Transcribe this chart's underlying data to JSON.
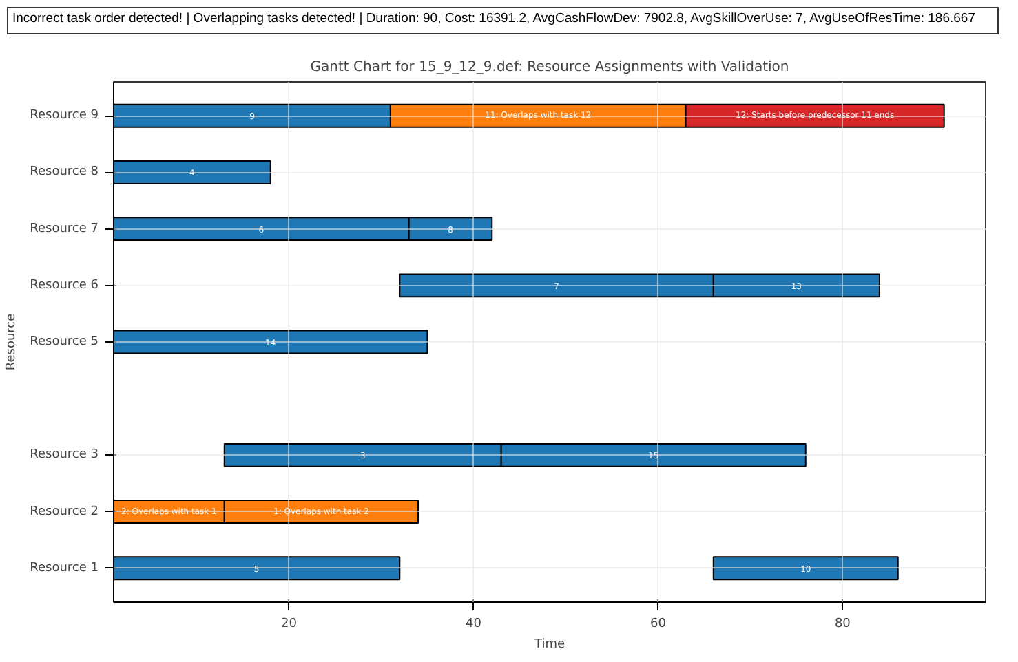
{
  "chart_data": {
    "type": "bar",
    "orientation": "horizontal",
    "title": "Gantt Chart for 15_9_12_9.def: Resource Assignments with Validation",
    "xlabel": "Time",
    "ylabel": "Resource",
    "annotations": [
      "Incorrect task order detected! | Overlapping tasks detected! | Duration: 90, Cost: 16391.2, AvgCashFlowDev: 7902.8, AvgSkillOverUse: 7, AvgUseOfResTime: 186.667",
      "9",
      "4",
      "6",
      "7",
      "14",
      "3",
      "2: Overlaps with task 1",
      "5",
      "11: Overlaps with task 12",
      "8",
      "13",
      "15",
      "1: Overlaps with task 2",
      "10",
      "12: Starts before predecessor 11 ends"
    ],
    "categories": [
      "Resource 9",
      "Resource 8",
      "Resource 7",
      "Resource 6",
      "Resource 5",
      null,
      "Resource 3",
      "Resource 2",
      "Resource 1"
    ],
    "series": [
      {
        "values": [
          30,
          17,
          32,
          34,
          34,
          null,
          30,
          12,
          31
        ],
        "base": [
          1,
          1,
          1,
          32,
          1,
          null,
          13,
          1,
          1
        ],
        "colors": [
          "#1f77b4",
          "#1f77b4",
          "#1f77b4",
          "#1f77b4",
          "#1f77b4",
          null,
          "#1f77b4",
          "#ff7f0e",
          "#1f77b4"
        ]
      },
      {
        "values": [
          32,
          null,
          9,
          18,
          null,
          null,
          33,
          21,
          20
        ],
        "base": [
          31,
          null,
          33,
          66,
          null,
          null,
          43,
          13,
          66
        ],
        "colors": [
          "#ff7f0e",
          null,
          "#1f77b4",
          "#1f77b4",
          null,
          null,
          "#1f77b4",
          "#ff7f0e",
          "#1f77b4"
        ]
      },
      {
        "values": [
          28,
          null,
          null,
          null,
          null,
          null,
          null,
          null,
          null
        ],
        "base": [
          63,
          null,
          null,
          null,
          null,
          null,
          null,
          null,
          null
        ],
        "colors": [
          "#d62728",
          null,
          null,
          null,
          null,
          null,
          null,
          null,
          null
        ]
      }
    ],
    "xlim": [
      1,
      95.5
    ],
    "xticks": [
      20,
      40,
      60,
      80
    ],
    "grid": true
  }
}
